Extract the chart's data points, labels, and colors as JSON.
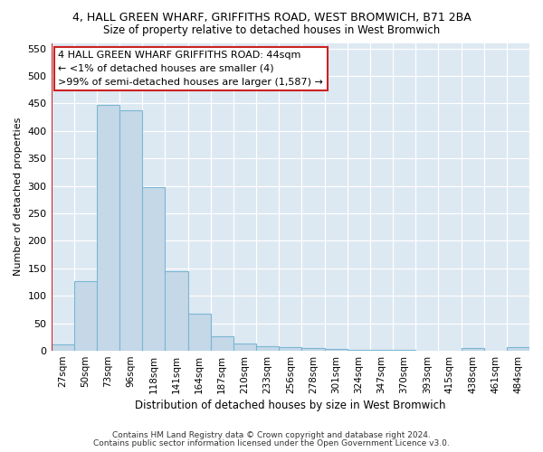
{
  "title": "4, HALL GREEN WHARF, GRIFFITHS ROAD, WEST BROMWICH, B71 2BA",
  "subtitle": "Size of property relative to detached houses in West Bromwich",
  "xlabel": "Distribution of detached houses by size in West Bromwich",
  "ylabel": "Number of detached properties",
  "footnote1": "Contains HM Land Registry data © Crown copyright and database right 2024.",
  "footnote2": "Contains public sector information licensed under the Open Government Licence v3.0.",
  "annotation_line1": "4 HALL GREEN WHARF GRIFFITHS ROAD: 44sqm",
  "annotation_line2": "← <1% of detached houses are smaller (4)",
  "annotation_line3": ">99% of semi-detached houses are larger (1,587) →",
  "bar_color": "#c5d8e8",
  "bar_edge_color": "#7ab6d4",
  "highlight_color": "#cc2222",
  "bg_color": "#dce8f2",
  "grid_color": "#ffffff",
  "categories": [
    "27sqm",
    "50sqm",
    "73sqm",
    "96sqm",
    "118sqm",
    "141sqm",
    "164sqm",
    "187sqm",
    "210sqm",
    "233sqm",
    "256sqm",
    "278sqm",
    "301sqm",
    "324sqm",
    "347sqm",
    "370sqm",
    "393sqm",
    "415sqm",
    "438sqm",
    "461sqm",
    "484sqm"
  ],
  "values": [
    12,
    126,
    447,
    437,
    297,
    145,
    68,
    27,
    14,
    9,
    6,
    5,
    3,
    1,
    1,
    1,
    0,
    0,
    5,
    0,
    6
  ],
  "ylim": [
    0,
    560
  ],
  "yticks": [
    0,
    50,
    100,
    150,
    200,
    250,
    300,
    350,
    400,
    450,
    500,
    550
  ],
  "red_line_x": -0.5,
  "fig_width": 6.0,
  "fig_height": 5.0,
  "title_fontsize": 9,
  "subtitle_fontsize": 8.5,
  "ylabel_fontsize": 8,
  "xlabel_fontsize": 8.5,
  "tick_fontsize": 8,
  "xtick_fontsize": 7.5,
  "annotation_fontsize": 8,
  "footnote_fontsize": 6.5
}
